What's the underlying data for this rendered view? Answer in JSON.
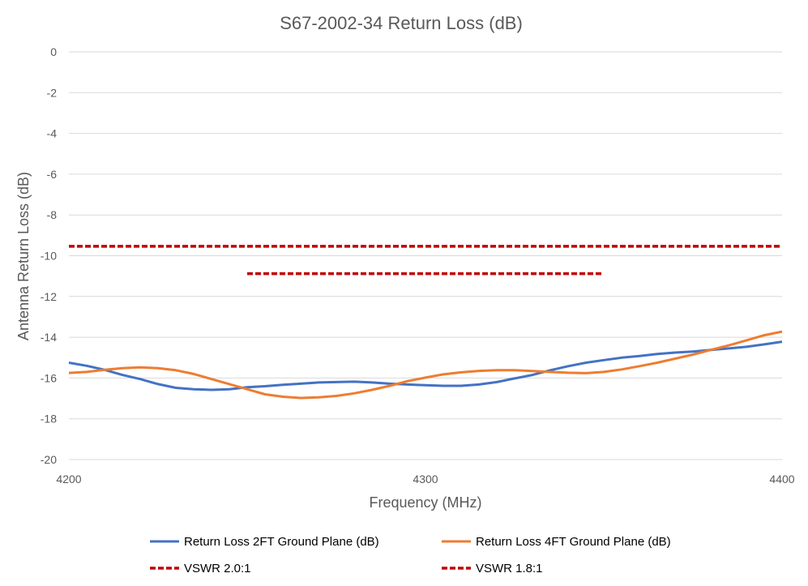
{
  "chart_data": {
    "type": "line",
    "title": "S67-2002-34 Return Loss (dB)",
    "xlabel": "Frequency (MHz)",
    "ylabel": "Antenna Return Loss (dB)",
    "xlim": [
      4200,
      4400
    ],
    "ylim": [
      -20,
      0
    ],
    "xticks": [
      4200,
      4300,
      4400
    ],
    "yticks": [
      0,
      -2,
      -4,
      -6,
      -8,
      -10,
      -12,
      -14,
      -16,
      -18,
      -20
    ],
    "grid": true,
    "legend_position": "bottom",
    "series": [
      {
        "name": "Return Loss 2FT Ground Plane (dB)",
        "color": "#4472C4",
        "style": "solid",
        "x": [
          4200,
          4205,
          4210,
          4215,
          4220,
          4225,
          4230,
          4235,
          4240,
          4245,
          4250,
          4255,
          4260,
          4265,
          4270,
          4275,
          4280,
          4285,
          4290,
          4295,
          4300,
          4305,
          4310,
          4315,
          4320,
          4325,
          4330,
          4335,
          4340,
          4345,
          4350,
          4355,
          4360,
          4365,
          4370,
          4375,
          4380,
          4385,
          4390,
          4395,
          4400
        ],
        "y": [
          -15.25,
          -15.4,
          -15.6,
          -15.85,
          -16.05,
          -16.3,
          -16.48,
          -16.55,
          -16.58,
          -16.55,
          -16.45,
          -16.4,
          -16.33,
          -16.28,
          -16.22,
          -16.2,
          -16.18,
          -16.22,
          -16.28,
          -16.32,
          -16.35,
          -16.38,
          -16.38,
          -16.32,
          -16.2,
          -16.02,
          -15.85,
          -15.62,
          -15.42,
          -15.25,
          -15.12,
          -15.0,
          -14.92,
          -14.82,
          -14.75,
          -14.7,
          -14.62,
          -14.55,
          -14.47,
          -14.35,
          -14.22
        ]
      },
      {
        "name": "Return Loss 4FT Ground Plane (dB)",
        "color": "#ED7D31",
        "style": "solid",
        "x": [
          4200,
          4205,
          4210,
          4215,
          4220,
          4225,
          4230,
          4235,
          4240,
          4245,
          4250,
          4255,
          4260,
          4265,
          4270,
          4275,
          4280,
          4285,
          4290,
          4295,
          4300,
          4305,
          4310,
          4315,
          4320,
          4325,
          4330,
          4335,
          4340,
          4345,
          4350,
          4355,
          4360,
          4365,
          4370,
          4375,
          4380,
          4385,
          4390,
          4395,
          4400
        ],
        "y": [
          -15.75,
          -15.7,
          -15.6,
          -15.52,
          -15.48,
          -15.52,
          -15.62,
          -15.8,
          -16.05,
          -16.3,
          -16.55,
          -16.8,
          -16.92,
          -16.98,
          -16.95,
          -16.88,
          -16.75,
          -16.58,
          -16.38,
          -16.15,
          -15.98,
          -15.82,
          -15.72,
          -15.65,
          -15.62,
          -15.62,
          -15.66,
          -15.7,
          -15.74,
          -15.76,
          -15.7,
          -15.58,
          -15.42,
          -15.25,
          -15.05,
          -14.85,
          -14.62,
          -14.4,
          -14.15,
          -13.9,
          -13.72
        ]
      },
      {
        "name": "VSWR 2.0:1",
        "color": "#C00000",
        "style": "dashed",
        "x": [
          4200,
          4400
        ],
        "y": [
          -9.54,
          -9.54
        ]
      },
      {
        "name": "VSWR 1.8:1",
        "color": "#C00000",
        "style": "dashed",
        "x": [
          4250,
          4350
        ],
        "y": [
          -10.88,
          -10.88
        ]
      }
    ]
  }
}
